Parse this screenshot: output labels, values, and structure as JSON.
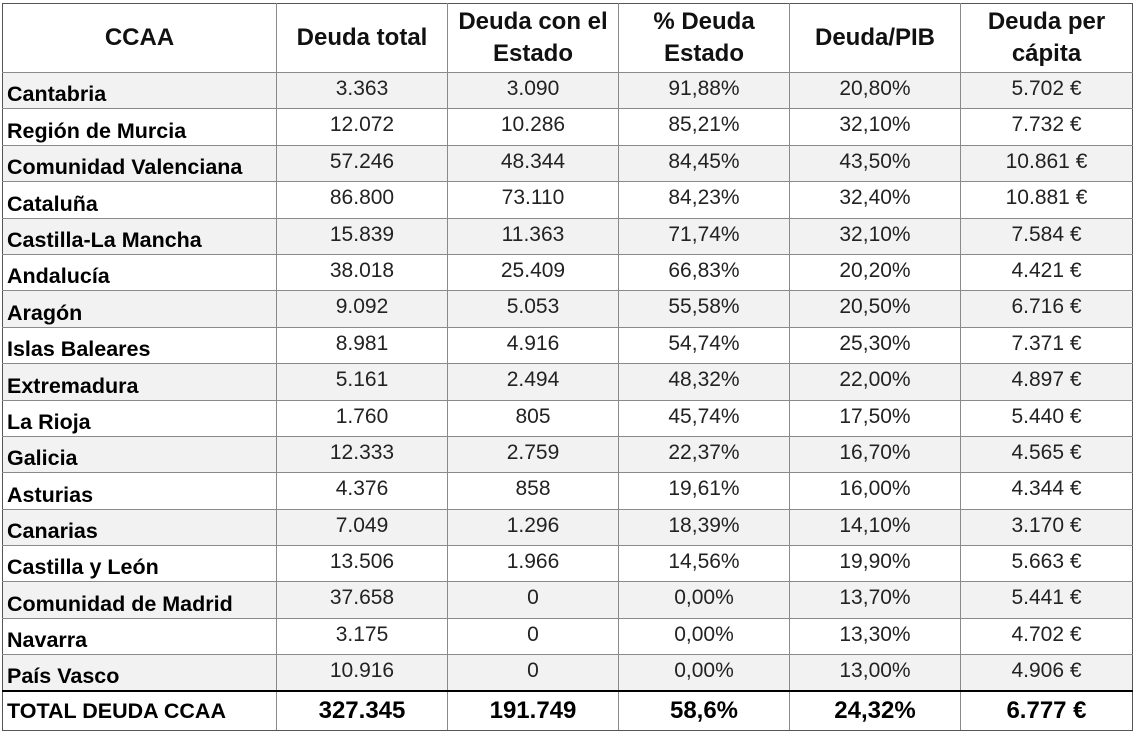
{
  "headers": [
    "CCAA",
    "Deuda total",
    "Deuda con el Estado",
    "% Deuda Estado",
    "Deuda/PIB",
    "Deuda per cápita"
  ],
  "rows": [
    [
      "Cantabria",
      "3.363",
      "3.090",
      "91,88%",
      "20,80%",
      "5.702 €"
    ],
    [
      "Región de Murcia",
      "12.072",
      "10.286",
      "85,21%",
      "32,10%",
      "7.732 €"
    ],
    [
      "Comunidad Valenciana",
      "57.246",
      "48.344",
      "84,45%",
      "43,50%",
      "10.861 €"
    ],
    [
      "Cataluña",
      "86.800",
      "73.110",
      "84,23%",
      "32,40%",
      "10.881 €"
    ],
    [
      "Castilla-La Mancha",
      "15.839",
      "11.363",
      "71,74%",
      "32,10%",
      "7.584 €"
    ],
    [
      "Andalucía",
      "38.018",
      "25.409",
      "66,83%",
      "20,20%",
      "4.421 €"
    ],
    [
      "Aragón",
      "9.092",
      "5.053",
      "55,58%",
      "20,50%",
      "6.716 €"
    ],
    [
      "Islas Baleares",
      "8.981",
      "4.916",
      "54,74%",
      "25,30%",
      "7.371 €"
    ],
    [
      "Extremadura",
      "5.161",
      "2.494",
      "48,32%",
      "22,00%",
      "4.897 €"
    ],
    [
      "La Rioja",
      "1.760",
      "805",
      "45,74%",
      "17,50%",
      "5.440 €"
    ],
    [
      "Galicia",
      "12.333",
      "2.759",
      "22,37%",
      "16,70%",
      "4.565 €"
    ],
    [
      "Asturias",
      "4.376",
      "858",
      "19,61%",
      "16,00%",
      "4.344 €"
    ],
    [
      "Canarias",
      "7.049",
      "1.296",
      "18,39%",
      "14,10%",
      "3.170 €"
    ],
    [
      "Castilla y León",
      "13.506",
      "1.966",
      "14,56%",
      "19,90%",
      "5.663 €"
    ],
    [
      "Comunidad de Madrid",
      "37.658",
      "0",
      "0,00%",
      "13,70%",
      "5.441 €"
    ],
    [
      "Navarra",
      "3.175",
      "0",
      "0,00%",
      "13,30%",
      "4.702 €"
    ],
    [
      "País Vasco",
      "10.916",
      "0",
      "0,00%",
      "13,00%",
      "4.906 €"
    ]
  ],
  "total": [
    "TOTAL DEUDA CCAA",
    "327.345",
    "191.749",
    "58,6%",
    "24,32%",
    "6.777 €"
  ]
}
